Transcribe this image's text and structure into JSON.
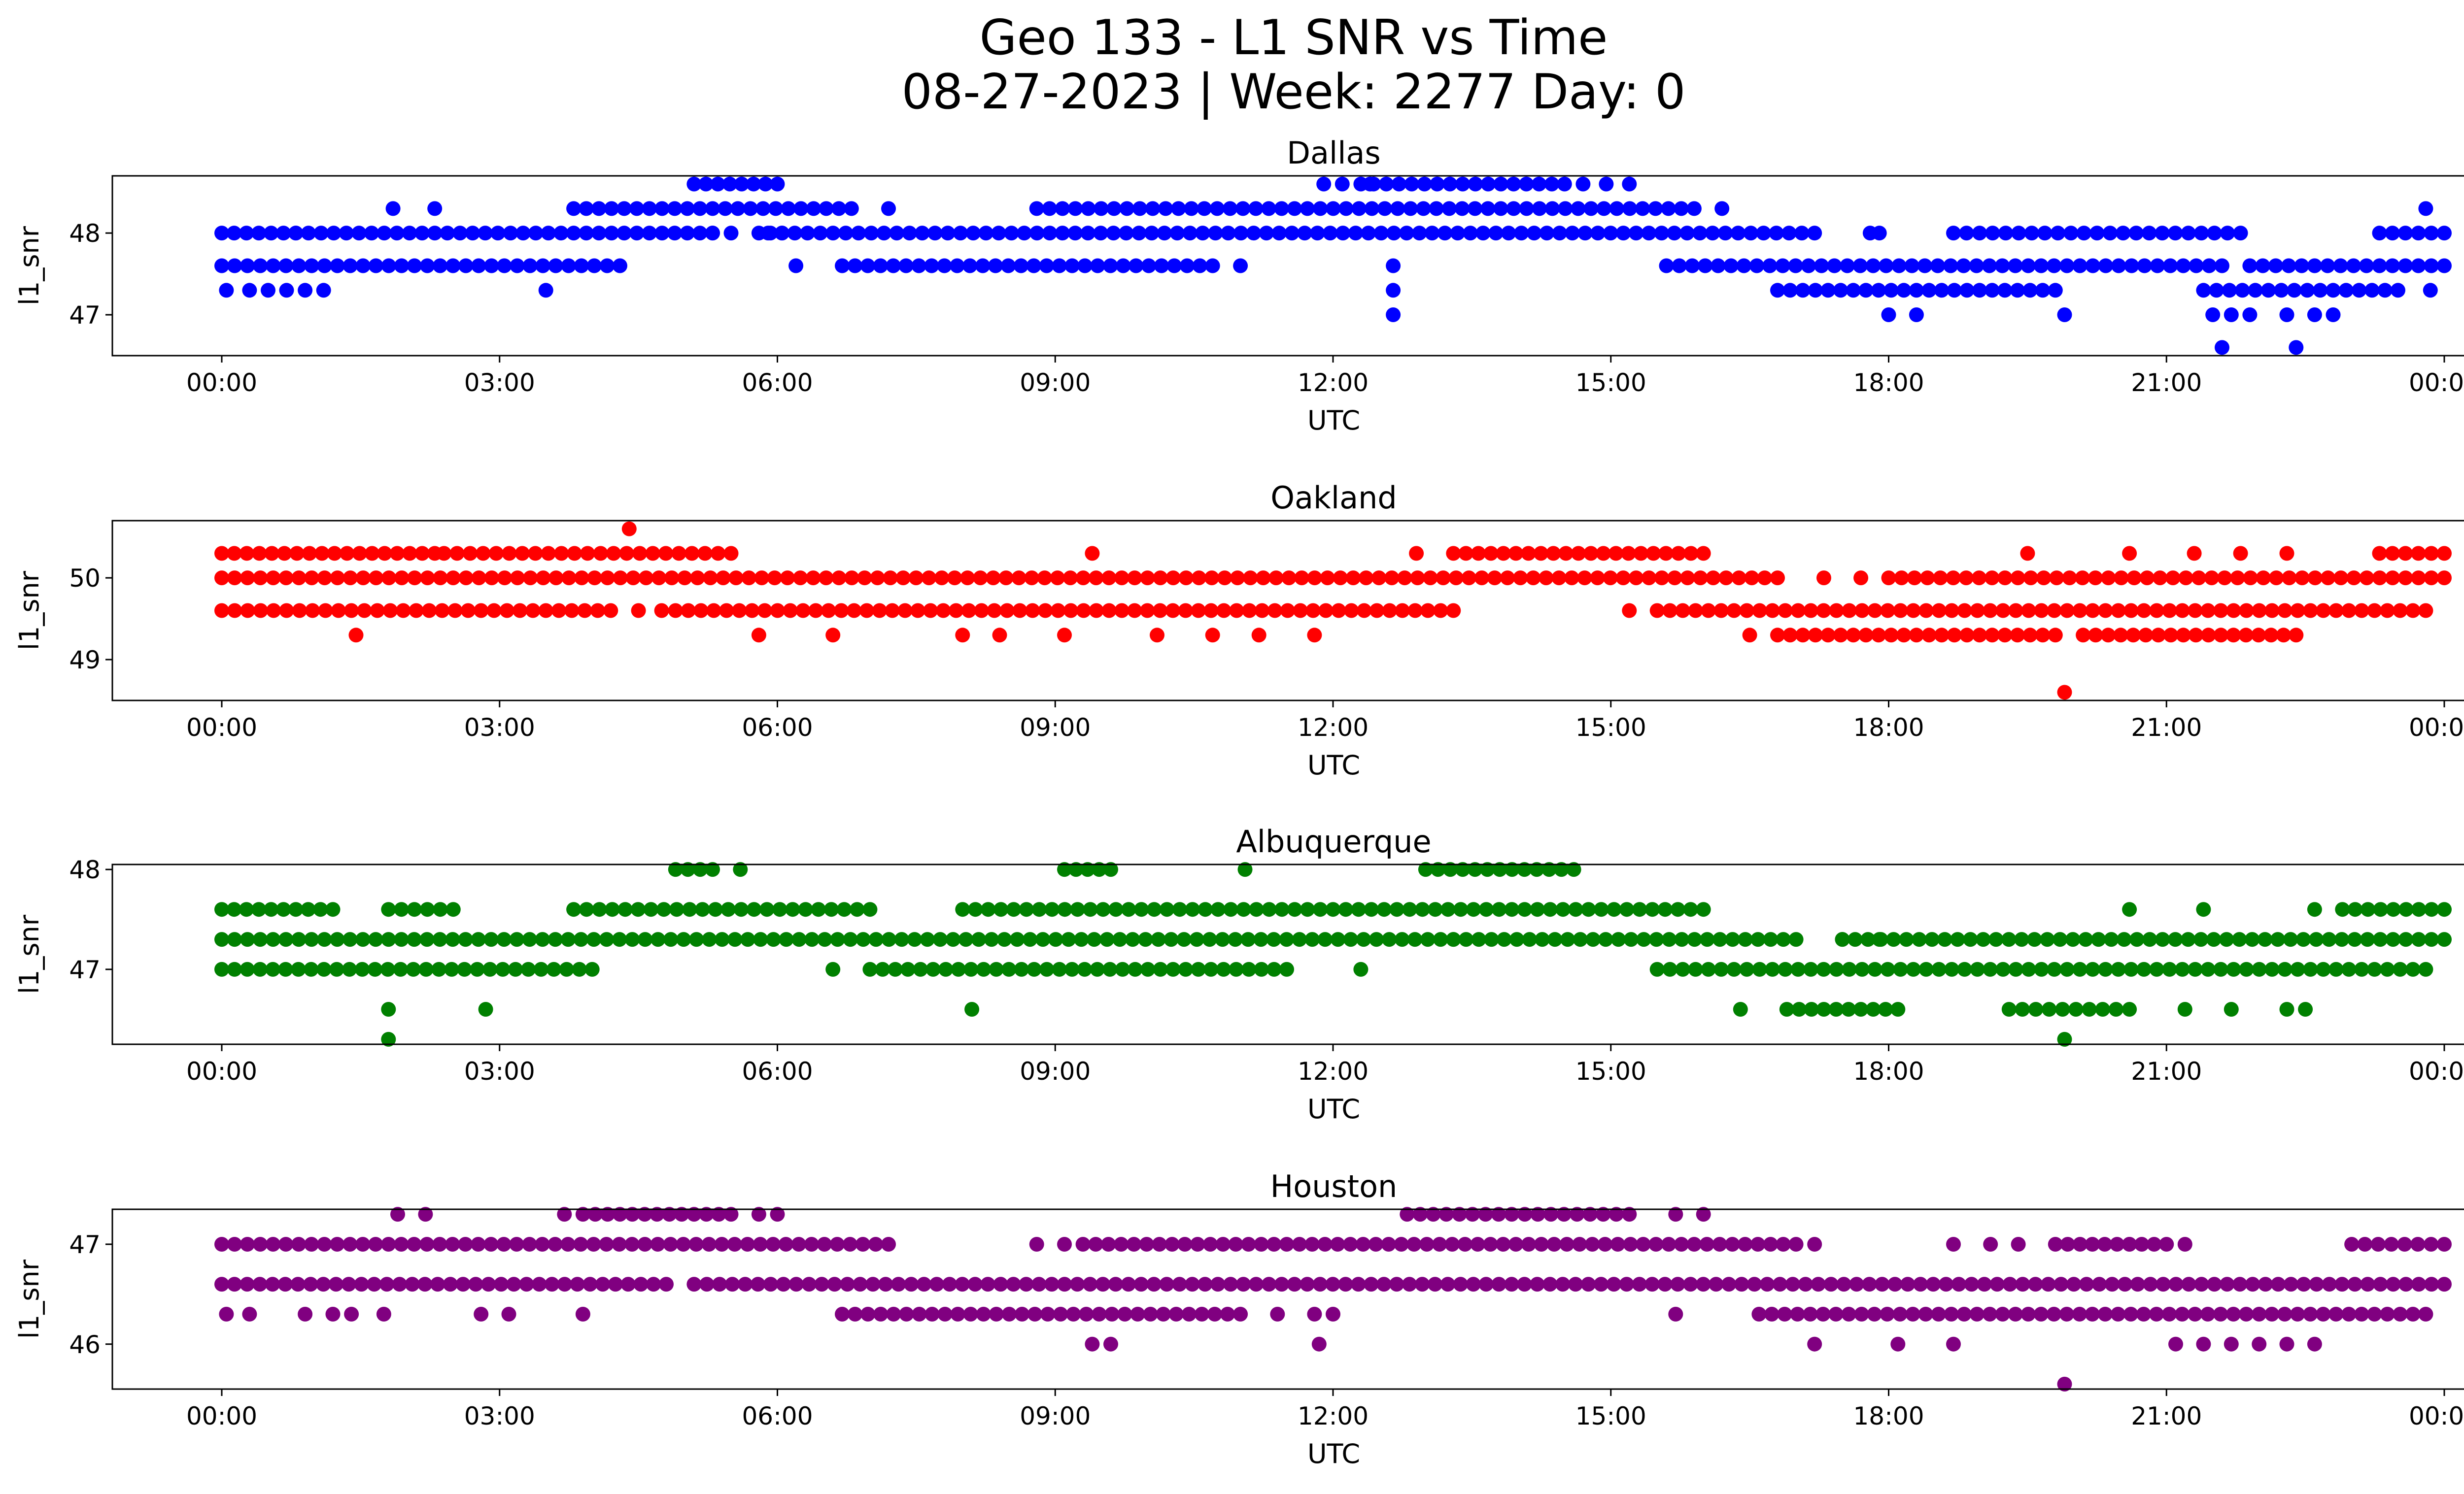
{
  "figure": {
    "title_line1": "Geo 133 - L1 SNR vs Time",
    "title_line2": "08-27-2023 | Week: 2277 Day: 0"
  },
  "chart_data": [
    {
      "type": "scatter",
      "title": "Dallas",
      "xlabel": "UTC",
      "ylabel": "l1_snr",
      "color": "#0000ff",
      "xlim_hours": [
        -1.2,
        25.2
      ],
      "ylim": [
        46.5,
        48.7
      ],
      "yticks": [
        47,
        48
      ],
      "xticks": [
        "00:00",
        "03:00",
        "06:00",
        "09:00",
        "12:00",
        "15:00",
        "18:00",
        "21:00",
        "00:00"
      ],
      "levels": [
        {
          "y": 48.0,
          "segments": [
            [
              0.0,
              0.8
            ],
            [
              0.8,
              5.3
            ],
            [
              5.3,
              5.5
            ],
            [
              5.8,
              6.05
            ],
            [
              6.05,
              17.2
            ],
            [
              17.8,
              17.9
            ],
            [
              18.7,
              21.8
            ],
            [
              23.3,
              24.0
            ]
          ]
        },
        {
          "y": 47.6,
          "segments": [
            [
              0.0,
              4.3
            ],
            [
              6.7,
              10.7
            ],
            [
              15.6,
              21.6
            ],
            [
              21.9,
              24.0
            ]
          ]
        },
        {
          "y": 48.3,
          "segments": [
            [
              3.8,
              6.8
            ],
            [
              8.8,
              15.9
            ]
          ]
        },
        {
          "y": 48.6,
          "segments": [
            [
              5.1,
              6.0
            ],
            [
              11.9,
              12.1
            ],
            [
              12.3,
              14.5
            ]
          ]
        },
        {
          "y": 47.3,
          "segments": [
            [
              16.8,
              19.8
            ],
            [
              21.4,
              23.5
            ]
          ]
        }
      ],
      "points": [
        [
          0.05,
          47.3
        ],
        [
          0.3,
          47.3
        ],
        [
          0.5,
          47.3
        ],
        [
          0.7,
          47.3
        ],
        [
          0.9,
          47.3
        ],
        [
          1.1,
          47.3
        ],
        [
          1.85,
          48.3
        ],
        [
          2.3,
          48.3
        ],
        [
          3.5,
          47.3
        ],
        [
          5.9,
          48.0
        ],
        [
          6.2,
          47.6
        ],
        [
          7.2,
          48.3
        ],
        [
          11.0,
          47.6
        ],
        [
          12.4,
          48.6
        ],
        [
          14.7,
          48.6
        ],
        [
          14.95,
          48.6
        ],
        [
          15.2,
          48.6
        ],
        [
          16.2,
          48.3
        ],
        [
          12.65,
          47.6
        ],
        [
          12.65,
          47.3
        ],
        [
          12.65,
          47.0
        ],
        [
          18.0,
          47.0
        ],
        [
          18.3,
          47.0
        ],
        [
          19.9,
          47.0
        ],
        [
          21.6,
          46.6
        ],
        [
          22.4,
          46.6
        ],
        [
          21.5,
          47.0
        ],
        [
          21.7,
          47.0
        ],
        [
          21.9,
          47.0
        ],
        [
          22.3,
          47.0
        ],
        [
          22.6,
          47.0
        ],
        [
          22.8,
          47.0
        ],
        [
          23.8,
          48.3
        ],
        [
          23.85,
          47.3
        ]
      ]
    },
    {
      "type": "scatter",
      "title": "Oakland",
      "xlabel": "UTC",
      "ylabel": "l1_snr",
      "color": "#ff0000",
      "xlim_hours": [
        -1.2,
        25.2
      ],
      "ylim": [
        48.5,
        50.7
      ],
      "yticks": [
        49,
        50
      ],
      "xticks": [
        "00:00",
        "03:00",
        "06:00",
        "09:00",
        "12:00",
        "15:00",
        "18:00",
        "21:00",
        "00:00"
      ],
      "levels": [
        {
          "y": 50.0,
          "segments": [
            [
              0.0,
              16.8
            ],
            [
              18.0,
              24.0
            ]
          ]
        },
        {
          "y": 50.3,
          "segments": [
            [
              0.0,
              2.3
            ],
            [
              2.4,
              5.5
            ],
            [
              13.3,
              16.0
            ],
            [
              23.3,
              24.0
            ]
          ]
        },
        {
          "y": 49.6,
          "segments": [
            [
              0.0,
              4.2
            ],
            [
              4.9,
              13.3
            ],
            [
              15.5,
              23.8
            ]
          ]
        },
        {
          "y": 49.3,
          "segments": [
            [
              16.8,
              19.8
            ],
            [
              20.1,
              22.4
            ]
          ]
        }
      ],
      "points": [
        [
          1.45,
          49.3
        ],
        [
          4.4,
          50.6
        ],
        [
          4.5,
          49.6
        ],
        [
          4.75,
          49.6
        ],
        [
          5.8,
          49.3
        ],
        [
          6.6,
          49.3
        ],
        [
          8.0,
          49.3
        ],
        [
          8.4,
          49.3
        ],
        [
          9.1,
          49.3
        ],
        [
          9.4,
          50.3
        ],
        [
          10.1,
          49.3
        ],
        [
          10.7,
          49.3
        ],
        [
          11.2,
          49.3
        ],
        [
          11.8,
          49.3
        ],
        [
          12.9,
          50.3
        ],
        [
          15.2,
          49.6
        ],
        [
          16.5,
          49.3
        ],
        [
          17.3,
          50.0
        ],
        [
          17.7,
          50.0
        ],
        [
          19.5,
          50.3
        ],
        [
          19.9,
          48.6
        ],
        [
          20.6,
          50.3
        ],
        [
          21.3,
          50.3
        ],
        [
          21.8,
          50.3
        ],
        [
          22.3,
          50.3
        ]
      ]
    },
    {
      "type": "scatter",
      "title": "Albuquerque",
      "xlabel": "UTC",
      "ylabel": "l1_snr",
      "color": "#008000",
      "xlim_hours": [
        -1.2,
        25.2
      ],
      "ylim": [
        46.25,
        48.05
      ],
      "yticks": [
        47,
        48
      ],
      "xticks": [
        "00:00",
        "03:00",
        "06:00",
        "09:00",
        "12:00",
        "15:00",
        "18:00",
        "21:00",
        "00:00"
      ],
      "levels": [
        {
          "y": 47.3,
          "segments": [
            [
              0.0,
              13.3
            ],
            [
              13.3,
              17.0
            ],
            [
              17.5,
              24.0
            ]
          ]
        },
        {
          "y": 47.6,
          "segments": [
            [
              0.0,
              1.2
            ],
            [
              1.8,
              2.5
            ],
            [
              3.8,
              7.0
            ],
            [
              8.0,
              16.0
            ],
            [
              22.9,
              24.0
            ]
          ]
        },
        {
          "y": 47.0,
          "segments": [
            [
              0.0,
              4.0
            ],
            [
              7.0,
              11.5
            ],
            [
              15.5,
              23.8
            ]
          ]
        },
        {
          "y": 48.0,
          "segments": [
            [
              4.9,
              5.3
            ],
            [
              9.1,
              9.6
            ],
            [
              13.0,
              14.6
            ]
          ]
        },
        {
          "y": 46.6,
          "segments": [
            [
              16.9,
              18.1
            ],
            [
              19.3,
              20.6
            ]
          ]
        }
      ],
      "points": [
        [
          1.8,
          46.6
        ],
        [
          1.8,
          46.3
        ],
        [
          2.85,
          46.6
        ],
        [
          5.6,
          48.0
        ],
        [
          8.1,
          46.6
        ],
        [
          11.05,
          48.0
        ],
        [
          12.3,
          47.0
        ],
        [
          16.4,
          46.6
        ],
        [
          19.9,
          46.3
        ],
        [
          21.2,
          46.6
        ],
        [
          21.7,
          46.6
        ],
        [
          22.3,
          46.6
        ],
        [
          22.5,
          46.6
        ],
        [
          20.6,
          47.6
        ],
        [
          21.4,
          47.6
        ],
        [
          22.6,
          47.6
        ],
        [
          17.5,
          47.3
        ],
        [
          17.9,
          47.3
        ],
        [
          6.6,
          47.0
        ]
      ]
    },
    {
      "type": "scatter",
      "title": "Houston",
      "xlabel": "UTC",
      "ylabel": "l1_snr",
      "color": "#800080",
      "xlim_hours": [
        -1.2,
        25.2
      ],
      "ylim": [
        45.55,
        47.35
      ],
      "yticks": [
        46,
        47
      ],
      "xticks": [
        "00:00",
        "03:00",
        "06:00",
        "09:00",
        "12:00",
        "15:00",
        "18:00",
        "21:00",
        "00:00"
      ],
      "levels": [
        {
          "y": 47.0,
          "segments": [
            [
              0.0,
              7.2
            ],
            [
              9.3,
              17.0
            ],
            [
              19.8,
              21.0
            ],
            [
              23.0,
              24.0
            ]
          ]
        },
        {
          "y": 46.6,
          "segments": [
            [
              0.0,
              4.8
            ],
            [
              5.1,
              24.0
            ]
          ]
        },
        {
          "y": 46.3,
          "segments": [
            [
              6.7,
              11.0
            ],
            [
              16.6,
              23.8
            ]
          ]
        },
        {
          "y": 47.3,
          "segments": [
            [
              3.9,
              5.5
            ],
            [
              12.8,
              15.2
            ]
          ]
        }
      ],
      "points": [
        [
          0.05,
          46.3
        ],
        [
          0.3,
          46.3
        ],
        [
          0.9,
          46.3
        ],
        [
          1.2,
          46.3
        ],
        [
          1.4,
          46.3
        ],
        [
          1.75,
          46.3
        ],
        [
          2.8,
          46.3
        ],
        [
          3.1,
          46.3
        ],
        [
          3.9,
          46.3
        ],
        [
          1.9,
          47.3
        ],
        [
          2.2,
          47.3
        ],
        [
          3.7,
          47.3
        ],
        [
          5.8,
          47.3
        ],
        [
          6.0,
          47.3
        ],
        [
          8.8,
          47.0
        ],
        [
          9.1,
          47.0
        ],
        [
          9.4,
          46.0
        ],
        [
          9.6,
          46.0
        ],
        [
          11.4,
          46.3
        ],
        [
          11.8,
          46.3
        ],
        [
          11.85,
          46.0
        ],
        [
          12.0,
          46.3
        ],
        [
          15.7,
          46.3
        ],
        [
          15.7,
          47.3
        ],
        [
          16.0,
          47.3
        ],
        [
          17.2,
          46.0
        ],
        [
          17.2,
          47.0
        ],
        [
          18.1,
          46.0
        ],
        [
          18.7,
          46.0
        ],
        [
          18.7,
          47.0
        ],
        [
          19.1,
          47.0
        ],
        [
          19.4,
          47.0
        ],
        [
          19.9,
          45.6
        ],
        [
          20.6,
          47.0
        ],
        [
          21.1,
          46.0
        ],
        [
          21.4,
          46.0
        ],
        [
          21.7,
          46.0
        ],
        [
          21.2,
          47.0
        ],
        [
          22.0,
          46.0
        ],
        [
          22.3,
          46.0
        ],
        [
          22.6,
          46.0
        ]
      ]
    }
  ]
}
